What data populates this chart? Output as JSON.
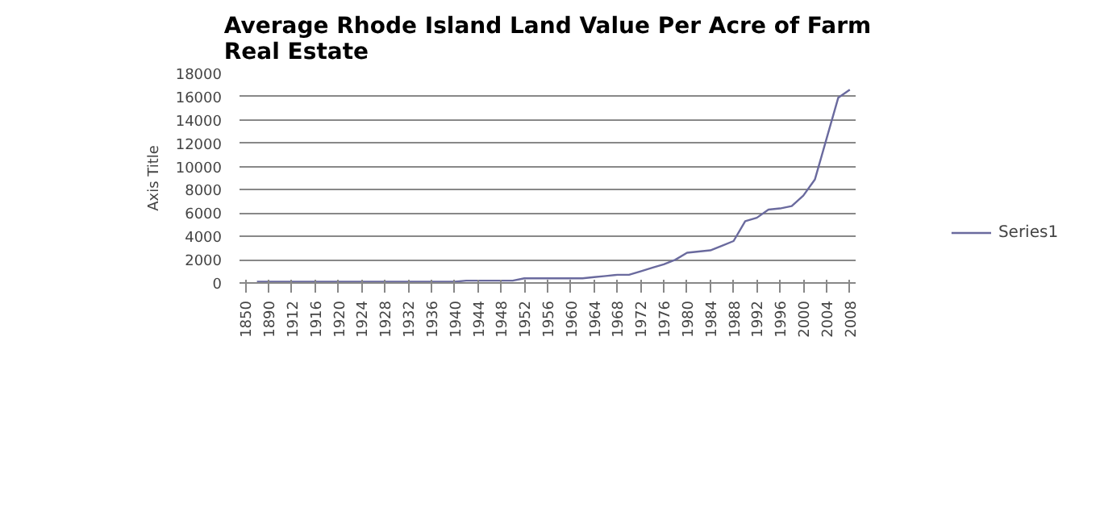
{
  "chart_data": {
    "type": "line",
    "title": "Average Rhode Island Land Value Per Acre of Farm Real Estate",
    "ylabel": "Axis Title",
    "categories": [
      "1850",
      null,
      "1890",
      null,
      "1912",
      null,
      "1916",
      null,
      "1920",
      null,
      "1924",
      null,
      "1928",
      null,
      "1932",
      null,
      "1936",
      null,
      "1940",
      null,
      "1944",
      null,
      "1948",
      null,
      "1952",
      null,
      "1956",
      null,
      "1960",
      null,
      "1964",
      null,
      "1968",
      null,
      "1972",
      null,
      "1976",
      null,
      "1980",
      null,
      "1984",
      null,
      "1988",
      null,
      "1992",
      null,
      "1996",
      null,
      "2000",
      null,
      "2004",
      null,
      "2008"
    ],
    "series": [
      {
        "name": "Series1",
        "color": "#6a6a9e",
        "values": [
          null,
          100,
          100,
          100,
          100,
          100,
          100,
          100,
          100,
          100,
          100,
          100,
          100,
          100,
          100,
          100,
          100,
          100,
          100,
          200,
          200,
          200,
          200,
          200,
          400,
          400,
          400,
          400,
          400,
          400,
          500,
          600,
          700,
          700,
          1000,
          1300,
          1600,
          2000,
          2600,
          2700,
          2800,
          3200,
          3600,
          5300,
          5600,
          6300,
          6400,
          6600,
          7500,
          8900,
          12400,
          15900,
          16600
        ]
      }
    ],
    "ylim": [
      0,
      18000
    ],
    "yticks": [
      0,
      2000,
      4000,
      6000,
      8000,
      10000,
      12000,
      14000,
      16000,
      18000
    ],
    "grid": "y",
    "legend": "right",
    "marker": "none",
    "line_style": "solid"
  }
}
